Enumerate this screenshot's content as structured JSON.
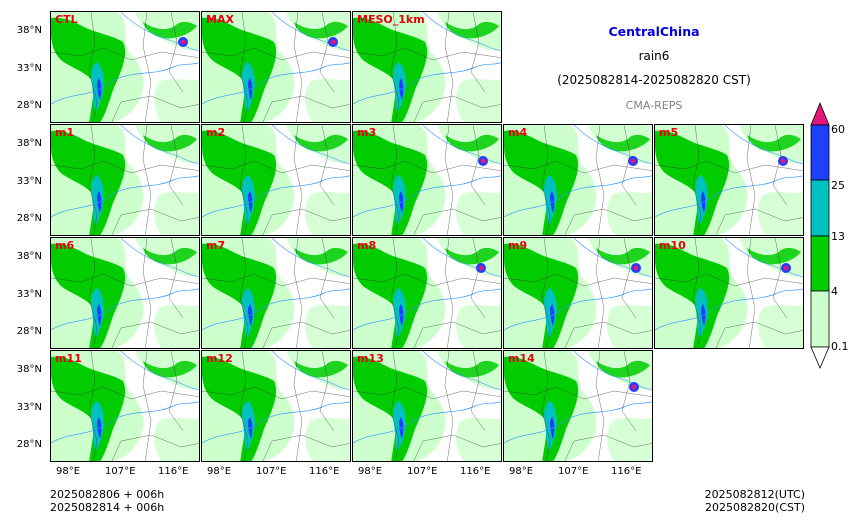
{
  "title": {
    "region": "CentralChina",
    "variable": "rain6",
    "period": "(2025082814-2025082820 CST)",
    "source": "CMA-REPS"
  },
  "colors": {
    "title_region": "#0000e0",
    "panel_label": "#e8000b",
    "bin1": "#ccffcc",
    "bin2": "#00cc00",
    "bin3": "#00c0c0",
    "bin4": "#1f3fff",
    "bin5": "#e0177a"
  },
  "panels": [
    {
      "label": "CTL",
      "row": 0,
      "col": 0
    },
    {
      "label": "MAX",
      "row": 0,
      "col": 1
    },
    {
      "label": "MESO_1km",
      "row": 0,
      "col": 2
    },
    {
      "label": "m1",
      "row": 1,
      "col": 0
    },
    {
      "label": "m2",
      "row": 1,
      "col": 1
    },
    {
      "label": "m3",
      "row": 1,
      "col": 2
    },
    {
      "label": "m4",
      "row": 1,
      "col": 3
    },
    {
      "label": "m5",
      "row": 1,
      "col": 4
    },
    {
      "label": "m6",
      "row": 2,
      "col": 0
    },
    {
      "label": "m7",
      "row": 2,
      "col": 1
    },
    {
      "label": "m8",
      "row": 2,
      "col": 2
    },
    {
      "label": "m9",
      "row": 2,
      "col": 3
    },
    {
      "label": "m10",
      "row": 2,
      "col": 4
    },
    {
      "label": "m11",
      "row": 3,
      "col": 0
    },
    {
      "label": "m12",
      "row": 3,
      "col": 1
    },
    {
      "label": "m13",
      "row": 3,
      "col": 2
    },
    {
      "label": "m14",
      "row": 3,
      "col": 3
    }
  ],
  "axes": {
    "lat_ticks": [
      "38°N",
      "33°N",
      "28°N"
    ],
    "lon_ticks": [
      "98°E",
      "107°E",
      "116°E"
    ]
  },
  "colorbar": {
    "levels": [
      "0.1",
      "4",
      "13",
      "25",
      "60"
    ]
  },
  "footer": {
    "init_utc": "2025082806  +  006h",
    "init_cst": "2025082814  +  006h",
    "valid_utc": "2025082812(UTC)",
    "valid_cst": "2025082820(CST)"
  }
}
